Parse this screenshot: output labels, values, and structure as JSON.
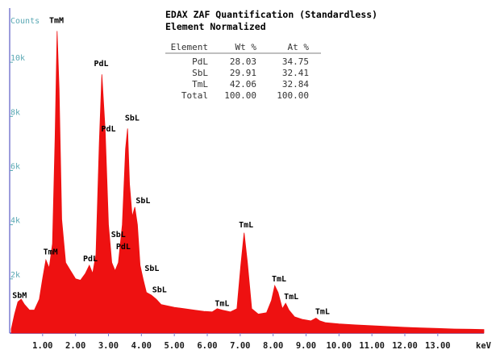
{
  "chart_data": {
    "type": "area",
    "title": "EDAX ZAF Quantification (Standardless)",
    "subtitle": "Element Normalized",
    "ylabel": "Counts",
    "xlabel": "keV",
    "xlim": [
      0,
      14.4
    ],
    "ylim": [
      0,
      12000
    ],
    "x_ticks": [
      1,
      2,
      3,
      4,
      5,
      6,
      7,
      8,
      9,
      10,
      11,
      12,
      13
    ],
    "x_tick_labels": [
      "1.00",
      "2.00",
      "3.00",
      "4.00",
      "5.00",
      "6.00",
      "7.00",
      "8.00",
      "9.00",
      "10.00",
      "11.00",
      "12.00",
      "13.00"
    ],
    "y_ticks": [
      2000,
      4000,
      6000,
      8000,
      10000
    ],
    "y_tick_labels": [
      "2k",
      "4k",
      "6k",
      "8k",
      "10k"
    ],
    "fill_color": "#ee1111",
    "axis_color": "#7b7bd0",
    "spectrum": [
      [
        0.05,
        150
      ],
      [
        0.15,
        700
      ],
      [
        0.25,
        1150
      ],
      [
        0.35,
        1250
      ],
      [
        0.45,
        1050
      ],
      [
        0.6,
        850
      ],
      [
        0.75,
        850
      ],
      [
        0.9,
        1250
      ],
      [
        1.0,
        2000
      ],
      [
        1.1,
        2700
      ],
      [
        1.2,
        2400
      ],
      [
        1.3,
        3300
      ],
      [
        1.38,
        7200
      ],
      [
        1.44,
        11150
      ],
      [
        1.5,
        9000
      ],
      [
        1.58,
        4200
      ],
      [
        1.7,
        2600
      ],
      [
        1.85,
        2300
      ],
      [
        2.0,
        2000
      ],
      [
        2.15,
        1950
      ],
      [
        2.3,
        2200
      ],
      [
        2.42,
        2500
      ],
      [
        2.52,
        2200
      ],
      [
        2.62,
        2900
      ],
      [
        2.72,
        7000
      ],
      [
        2.8,
        9550
      ],
      [
        2.9,
        7500
      ],
      [
        3.0,
        4000
      ],
      [
        3.1,
        2600
      ],
      [
        3.2,
        2300
      ],
      [
        3.3,
        2600
      ],
      [
        3.42,
        4000
      ],
      [
        3.52,
        6800
      ],
      [
        3.58,
        7550
      ],
      [
        3.64,
        5500
      ],
      [
        3.72,
        4300
      ],
      [
        3.8,
        4650
      ],
      [
        3.88,
        4000
      ],
      [
        3.96,
        2500
      ],
      [
        4.05,
        2000
      ],
      [
        4.15,
        1500
      ],
      [
        4.3,
        1400
      ],
      [
        4.45,
        1250
      ],
      [
        4.6,
        1050
      ],
      [
        4.8,
        1000
      ],
      [
        5.0,
        950
      ],
      [
        5.3,
        900
      ],
      [
        5.6,
        850
      ],
      [
        5.9,
        800
      ],
      [
        6.15,
        780
      ],
      [
        6.3,
        900
      ],
      [
        6.45,
        850
      ],
      [
        6.7,
        780
      ],
      [
        6.9,
        900
      ],
      [
        7.02,
        2500
      ],
      [
        7.12,
        3700
      ],
      [
        7.22,
        2600
      ],
      [
        7.35,
        900
      ],
      [
        7.55,
        700
      ],
      [
        7.8,
        750
      ],
      [
        7.95,
        1200
      ],
      [
        8.05,
        1750
      ],
      [
        8.15,
        1500
      ],
      [
        8.28,
        900
      ],
      [
        8.38,
        1100
      ],
      [
        8.48,
        850
      ],
      [
        8.65,
        600
      ],
      [
        8.9,
        500
      ],
      [
        9.15,
        450
      ],
      [
        9.3,
        550
      ],
      [
        9.42,
        450
      ],
      [
        9.6,
        380
      ],
      [
        10.0,
        340
      ],
      [
        10.5,
        300
      ],
      [
        11.0,
        270
      ],
      [
        11.5,
        240
      ],
      [
        12.0,
        210
      ],
      [
        12.5,
        190
      ],
      [
        13.0,
        170
      ],
      [
        13.5,
        150
      ],
      [
        14.0,
        140
      ],
      [
        14.4,
        130
      ]
    ],
    "peak_labels": [
      {
        "text": "SbM",
        "x": 0.3,
        "y": 1300
      },
      {
        "text": "TmM",
        "x": 1.24,
        "y": 2900
      },
      {
        "text": "TmM",
        "x": 1.42,
        "y": 11450
      },
      {
        "text": "PdL",
        "x": 2.45,
        "y": 2650
      },
      {
        "text": "PdL",
        "x": 2.78,
        "y": 9850
      },
      {
        "text": "PdL",
        "x": 3.0,
        "y": 7450
      },
      {
        "text": "SbL",
        "x": 3.72,
        "y": 7850
      },
      {
        "text": "SbL",
        "x": 3.3,
        "y": 3550
      },
      {
        "text": "PdL",
        "x": 3.45,
        "y": 3100
      },
      {
        "text": "SbL",
        "x": 4.05,
        "y": 4800
      },
      {
        "text": "SbL",
        "x": 4.32,
        "y": 2300
      },
      {
        "text": "SbL",
        "x": 4.55,
        "y": 1500
      },
      {
        "text": "TmL",
        "x": 6.45,
        "y": 1000
      },
      {
        "text": "TmL",
        "x": 7.18,
        "y": 3900
      },
      {
        "text": "TmL",
        "x": 8.18,
        "y": 1900
      },
      {
        "text": "TmL",
        "x": 8.55,
        "y": 1250
      },
      {
        "text": "TmL",
        "x": 9.5,
        "y": 700
      }
    ],
    "table": {
      "headers": [
        "Element",
        "Wt %",
        "At %"
      ],
      "rows": [
        [
          "PdL",
          "28.03",
          "34.75"
        ],
        [
          "SbL",
          "29.91",
          "32.41"
        ],
        [
          "TmL",
          "42.06",
          "32.84"
        ],
        [
          "Total",
          "100.00",
          "100.00"
        ]
      ]
    }
  }
}
